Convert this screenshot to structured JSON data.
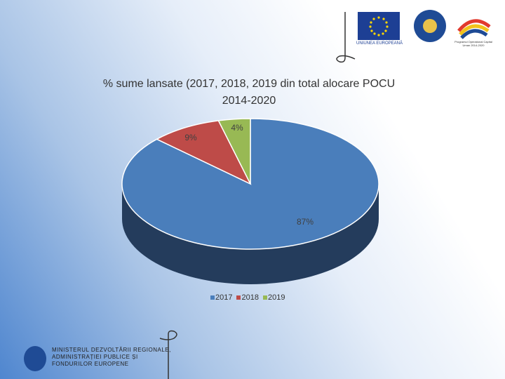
{
  "slide": {
    "eu_label": "UNIUNEA EUROPEANĂ",
    "program_label": "Programul Operațional Capital Uman 2014-2020",
    "ministry_lines": [
      "MINISTERUL DEZVOLTĂRII REGIONALE,",
      "ADMINISTRAȚIEI PUBLICE ȘI",
      "FONDURILOR EUROPENE"
    ]
  },
  "chart_data": {
    "type": "pie",
    "title_lines": [
      "% sume lansate (2017, 2018, 2019 din total alocare POCU",
      "2014-2020"
    ],
    "categories": [
      "2017",
      "2018",
      "2019"
    ],
    "values": [
      87,
      9,
      4
    ],
    "labels": [
      "87%",
      "9%",
      "4%"
    ],
    "colors": [
      "#4a7ebb",
      "#be4b48",
      "#98b954"
    ],
    "side_colors": [
      "#243c5c",
      "#5c2423",
      "#4a5c28"
    ],
    "legend_position": "bottom",
    "three_d": true
  }
}
